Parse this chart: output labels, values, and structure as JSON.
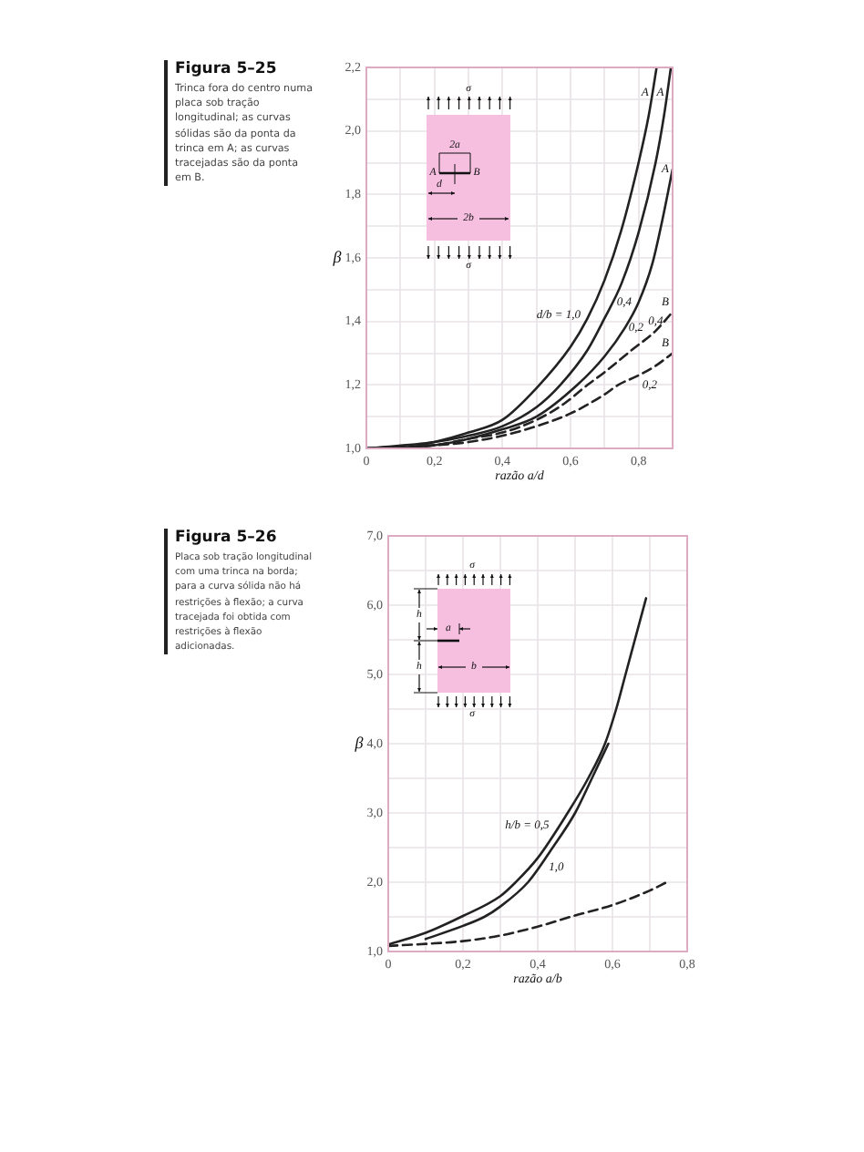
{
  "chart_data": [
    {
      "type": "line",
      "title": "Figura 5–25",
      "subtitle": "Trinca fora do centro numa placa sob tração longitudinal; as curvas sólidas são da ponta da trinca em A; as curvas tracejadas são da ponta em B.",
      "xlabel": "razão a/d",
      "ylabel": "β",
      "xlim": [
        0,
        0.9
      ],
      "ylim": [
        1.0,
        2.2
      ],
      "xticks": [
        0,
        {
          "value": 0.1,
          "label": null
        },
        {
          "value": 0.2,
          "label": "0,2"
        },
        {
          "value": 0.3,
          "label": null
        },
        {
          "value": 0.4,
          "label": "0,4"
        },
        {
          "value": 0.5,
          "label": null
        },
        {
          "value": 0.6,
          "label": "0,6"
        },
        {
          "value": 0.7,
          "label": null
        },
        {
          "value": 0.8,
          "label": "0,8"
        }
      ],
      "yticks": [
        {
          "value": 1.0,
          "label": "1,0"
        },
        {
          "value": 1.1,
          "label": null
        },
        {
          "value": 1.2,
          "label": "1,2"
        },
        {
          "value": 1.3,
          "label": null
        },
        {
          "value": 1.4,
          "label": "1,4"
        },
        {
          "value": 1.5,
          "label": null
        },
        {
          "value": 1.6,
          "label": "1,6"
        },
        {
          "value": 1.7,
          "label": null
        },
        {
          "value": 1.8,
          "label": "1,8"
        },
        {
          "value": 1.9,
          "label": null
        },
        {
          "value": 2.0,
          "label": "2,0"
        },
        {
          "value": 2.1,
          "label": null
        },
        {
          "value": 2.2,
          "label": "2,2"
        }
      ],
      "grid": true,
      "marker": "none",
      "series": [
        {
          "color": "#222222",
          "line_style": "solid",
          "x": [
            0,
            0.1,
            0.2,
            0.3,
            0.4,
            0.5,
            0.6,
            0.65,
            0.7,
            0.75,
            0.8,
            0.83,
            0.853
          ],
          "values": [
            1.0,
            1.0,
            1.02,
            1.05,
            1.09,
            1.19,
            1.32,
            1.41,
            1.53,
            1.69,
            1.9,
            2.05,
            2.2
          ]
        },
        {
          "color": "#222222",
          "line_style": "solid",
          "x": [
            0,
            0.2,
            0.3,
            0.4,
            0.5,
            0.57,
            0.65,
            0.7,
            0.75,
            0.8,
            0.85,
            0.875,
            0.895
          ],
          "values": [
            1.0,
            1.02,
            1.04,
            1.07,
            1.13,
            1.2,
            1.31,
            1.41,
            1.52,
            1.68,
            1.9,
            2.05,
            2.2
          ]
        },
        {
          "color": "#222222",
          "line_style": "solid",
          "x": [
            0,
            0.2,
            0.3,
            0.4,
            0.5,
            0.62,
            0.7,
            0.76,
            0.8,
            0.84,
            0.87,
            0.9
          ],
          "values": [
            1.0,
            1.01,
            1.03,
            1.06,
            1.1,
            1.2,
            1.29,
            1.38,
            1.46,
            1.58,
            1.72,
            1.88
          ]
        },
        {
          "color": "#222222",
          "line_style": "dashed",
          "x": [
            0,
            0.2,
            0.3,
            0.4,
            0.5,
            0.58,
            0.65,
            0.7,
            0.78,
            0.85,
            0.9
          ],
          "values": [
            1.0,
            1.01,
            1.03,
            1.05,
            1.09,
            1.14,
            1.2,
            1.24,
            1.31,
            1.37,
            1.43
          ]
        },
        {
          "color": "#222222",
          "line_style": "dashed",
          "x": [
            0,
            0.2,
            0.3,
            0.4,
            0.5,
            0.6,
            0.7,
            0.74,
            0.8,
            0.85,
            0.9
          ],
          "values": [
            1.0,
            1.01,
            1.02,
            1.04,
            1.07,
            1.11,
            1.17,
            1.2,
            1.23,
            1.26,
            1.3
          ]
        }
      ],
      "annotations": [
        {
          "text": "A",
          "x": 0.84,
          "y": 2.12
        },
        {
          "text": "A",
          "x": 0.885,
          "y": 2.12
        },
        {
          "text": "A",
          "x": 0.9,
          "y": 1.88
        },
        {
          "text": "B",
          "x": 0.9,
          "y": 1.43
        },
        {
          "text": "B",
          "x": 0.9,
          "y": 1.3
        },
        {
          "text": "d/b = 1,0",
          "x": 0.64,
          "y": 1.39
        },
        {
          "text": "0,4",
          "x": 0.725,
          "y": 1.46
        },
        {
          "text": "0,2",
          "x": 0.76,
          "y": 1.38
        },
        {
          "text": "0,4",
          "x": 0.85,
          "y": 1.37
        },
        {
          "text": "0,2",
          "x": 0.8,
          "y": 1.23
        },
        "σ",
        "2a",
        "A",
        "B",
        "d",
        "2b",
        "σ"
      ]
    },
    {
      "type": "line",
      "title": "Figura 5–26",
      "subtitle": "Placa sob tração longitudinal com uma trinca na borda; para a curva sólida não há restrições à flexão; a curva tracejada foi obtida com restrições à flexão adicionadas.",
      "xlabel": "razão a/b",
      "ylabel": "β",
      "xlim": [
        0,
        0.8
      ],
      "ylim": [
        1.0,
        7.0
      ],
      "xticks": [
        0,
        {
          "value": 0.1,
          "label": null
        },
        {
          "value": 0.2,
          "label": "0,2"
        },
        {
          "value": 0.3,
          "label": null
        },
        {
          "value": 0.4,
          "label": "0,4"
        },
        {
          "value": 0.5,
          "label": null
        },
        {
          "value": 0.6,
          "label": "0,6"
        },
        {
          "value": 0.7,
          "label": null
        },
        {
          "value": 0.8,
          "label": "0,8"
        }
      ],
      "yticks": [
        {
          "value": 1.0,
          "label": "1,0"
        },
        {
          "value": 1.5,
          "label": null
        },
        {
          "value": 2.0,
          "label": "2,0"
        },
        {
          "value": 2.5,
          "label": null
        },
        {
          "value": 3.0,
          "label": "3,0"
        },
        {
          "value": 3.5,
          "label": null
        },
        {
          "value": 4.0,
          "label": "4,0"
        },
        {
          "value": 4.5,
          "label": null
        },
        {
          "value": 5.0,
          "label": "5,0"
        },
        {
          "value": 5.5,
          "label": null
        },
        {
          "value": 6.0,
          "label": "6,0"
        },
        {
          "value": 6.5,
          "label": null
        },
        {
          "value": 7.0,
          "label": "7,0"
        }
      ],
      "grid": true,
      "marker": "none",
      "series": [
        {
          "color": "#222222",
          "line_style": "solid",
          "x": [
            0,
            0.1,
            0.195,
            0.3,
            0.341,
            0.4,
            0.48,
            0.535,
            0.58,
            0.61,
            0.635,
            0.665,
            0.69
          ],
          "values": [
            1.1,
            1.27,
            1.5,
            1.8,
            2.0,
            2.35,
            3.0,
            3.5,
            4.0,
            4.5,
            5.0,
            5.6,
            6.1
          ]
        },
        {
          "color": "#222222",
          "line_style": "solid",
          "x": [
            0.1,
            0.2,
            0.257,
            0.3,
            0.374,
            0.44,
            0.5,
            0.545,
            0.589
          ],
          "values": [
            1.18,
            1.37,
            1.5,
            1.65,
            2.0,
            2.5,
            3.0,
            3.5,
            4.0
          ]
        },
        {
          "color": "#222222",
          "line_style": "dashed",
          "x": [
            0,
            0.1,
            0.2,
            0.3,
            0.4,
            0.5,
            0.6,
            0.7,
            0.745
          ],
          "values": [
            1.08,
            1.11,
            1.15,
            1.23,
            1.36,
            1.52,
            1.67,
            1.88,
            2.0
          ]
        }
      ],
      "annotations": [
        {
          "text": "h/b = 0,5",
          "x": 0.44,
          "y": 2.68
        },
        {
          "text": "1,0",
          "x": 0.42,
          "y": 2.35
        },
        "σ",
        "h",
        "a",
        "h",
        "b",
        "σ"
      ]
    }
  ]
}
